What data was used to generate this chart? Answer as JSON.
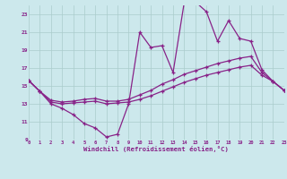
{
  "background_color": "#cce8ec",
  "line_color": "#882288",
  "grid_color": "#aacccc",
  "xlabel": "Windchill (Refroidissement éolien,°C)",
  "xlim": [
    0,
    23
  ],
  "ylim": [
    9,
    24
  ],
  "yticks": [
    9,
    11,
    13,
    15,
    17,
    19,
    21,
    23
  ],
  "xticks": [
    0,
    1,
    2,
    3,
    4,
    5,
    6,
    7,
    8,
    9,
    10,
    11,
    12,
    13,
    14,
    15,
    16,
    17,
    18,
    19,
    20,
    21,
    22,
    23
  ],
  "s1_x": [
    0,
    1,
    2,
    3,
    4,
    5,
    6,
    7,
    8,
    9,
    10,
    11,
    12,
    13,
    14,
    15,
    16,
    17,
    18,
    19,
    20,
    21,
    22,
    23
  ],
  "s1_y": [
    15.6,
    14.4,
    13.0,
    12.5,
    11.8,
    10.8,
    10.3,
    9.3,
    9.6,
    13.0,
    21.0,
    19.3,
    19.5,
    16.5,
    24.3,
    24.4,
    23.3,
    20.0,
    22.3,
    20.3,
    20.0,
    16.8,
    15.5,
    14.5
  ],
  "s2_x": [
    0,
    1,
    2,
    3,
    4,
    5,
    6,
    7,
    8,
    9,
    10,
    11,
    12,
    13,
    14,
    15,
    16,
    17,
    18,
    19,
    20,
    21,
    22,
    23
  ],
  "s2_y": [
    15.6,
    14.4,
    13.4,
    13.2,
    13.3,
    13.5,
    13.6,
    13.3,
    13.3,
    13.5,
    14.0,
    14.5,
    15.2,
    15.7,
    16.3,
    16.7,
    17.1,
    17.5,
    17.8,
    18.1,
    18.3,
    16.5,
    15.5,
    14.5
  ],
  "s3_x": [
    0,
    1,
    2,
    3,
    4,
    5,
    6,
    7,
    8,
    9,
    10,
    11,
    12,
    13,
    14,
    15,
    16,
    17,
    18,
    19,
    20,
    21,
    22,
    23
  ],
  "s3_y": [
    15.6,
    14.4,
    13.2,
    13.0,
    13.1,
    13.2,
    13.3,
    13.0,
    13.1,
    13.2,
    13.5,
    13.9,
    14.4,
    14.9,
    15.4,
    15.8,
    16.2,
    16.5,
    16.8,
    17.1,
    17.3,
    16.2,
    15.5,
    14.5
  ]
}
